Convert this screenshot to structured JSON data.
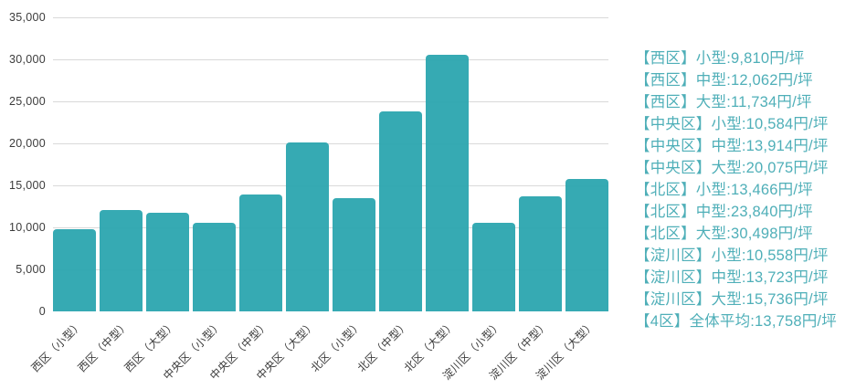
{
  "chart_data": {
    "type": "bar",
    "categories": [
      "西区（小型）",
      "西区（中型）",
      "西区（大型）",
      "中央区（小型）",
      "中央区（中型）",
      "中央区（大型）",
      "北区（小型）",
      "北区（中型）",
      "北区（大型）",
      "淀川区（小型）",
      "淀川区（中型）",
      "淀川区（大型）"
    ],
    "values": [
      9810,
      12062,
      11734,
      10584,
      13914,
      20075,
      13466,
      23840,
      30498,
      10558,
      13723,
      15736
    ],
    "title": "",
    "xlabel": "",
    "ylabel": "",
    "ylim": [
      0,
      35000
    ],
    "ytick_step": 5000,
    "yticks": [
      "0",
      "5,000",
      "10,000",
      "15,000",
      "20,000",
      "25,000",
      "30,000",
      "35,000"
    ],
    "grid": true,
    "legend_position": "right",
    "bar_color": "#2BA5AF",
    "gridline_color": "#d9d9d9",
    "axis_text_color": "#3b3b3b"
  },
  "legend": {
    "text_color": "#4FAFB8",
    "items": [
      "【西区】小型:9,810円/坪",
      "【西区】中型:12,062円/坪",
      "【西区】大型:11,734円/坪",
      "【中央区】小型:10,584円/坪",
      "【中央区】中型:13,914円/坪",
      "【中央区】大型:20,075円/坪",
      "【北区】小型:13,466円/坪",
      "【北区】中型:23,840円/坪",
      "【北区】大型:30,498円/坪",
      "【淀川区】小型:10,558円/坪",
      "【淀川区】中型:13,723円/坪",
      "【淀川区】大型:15,736円/坪",
      "【4区】全体平均:13,758円/坪"
    ]
  }
}
